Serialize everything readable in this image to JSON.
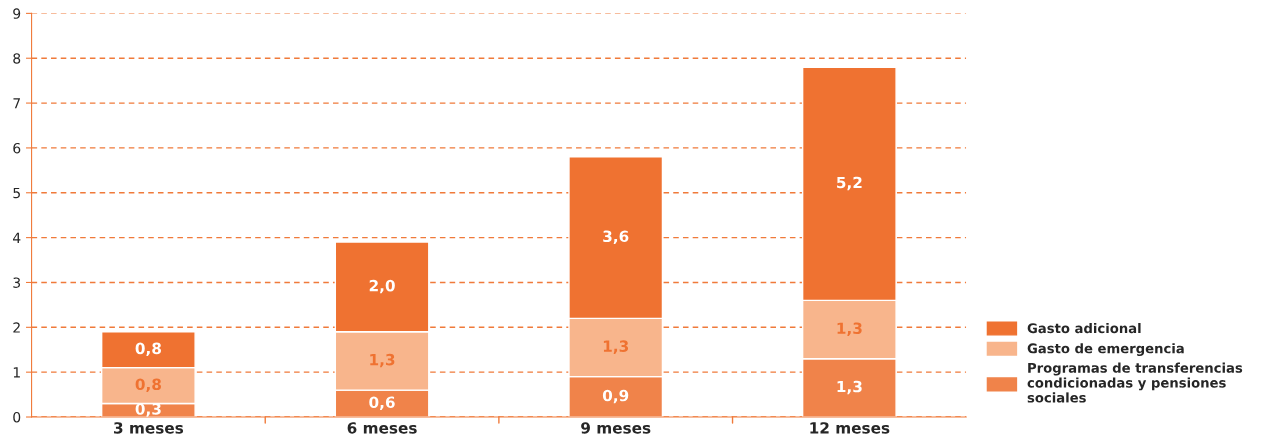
{
  "chart_data": {
    "type": "bar",
    "stacked": true,
    "categories": [
      "3 meses",
      "6 meses",
      "9 meses",
      "12 meses"
    ],
    "series": [
      {
        "name": "Programas de transferencias condicionadas y pensiones sociales",
        "color": "#f0834a",
        "values": [
          0.3,
          0.6,
          0.9,
          1.3
        ],
        "value_labels": [
          "0,3",
          "0,6",
          "0,9",
          "1,3"
        ]
      },
      {
        "name": "Gasto de emergencia",
        "color": "#f8b58c",
        "values": [
          0.8,
          1.3,
          1.3,
          1.3
        ],
        "value_labels": [
          "0,8",
          "1,3",
          "1,3",
          "1,3"
        ]
      },
      {
        "name": "Gasto adicional",
        "color": "#ef7231",
        "values": [
          0.8,
          2.0,
          3.6,
          5.2
        ],
        "value_labels": [
          "0,8",
          "2,0",
          "3,6",
          "5,2"
        ]
      }
    ],
    "ylim": [
      0,
      9
    ],
    "yticks": [
      0,
      1,
      2,
      3,
      4,
      5,
      6,
      7,
      8,
      9
    ],
    "grid": "y",
    "legend": "bottom right"
  }
}
